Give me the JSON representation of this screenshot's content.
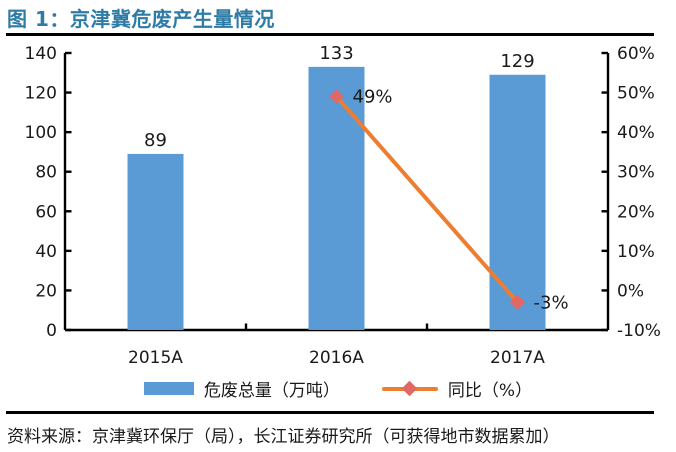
{
  "header": {
    "title": "图 1：京津冀危废产生量情况"
  },
  "footer": {
    "source": "资料来源：京津冀环保厅（局），长江证券研究所（可获得地市数据累加）"
  },
  "colors": {
    "title": "#2E7BA6",
    "bar": "#5B9BD5",
    "line": "#ED7D31",
    "marker": "#E16963",
    "axis": "#000000",
    "text": "#1A1A1A",
    "rule": "#000000"
  },
  "chart_data": {
    "type": "bar",
    "subtype": "bar-with-line-overlay",
    "title": "京津冀危废产生量情况",
    "categories": [
      "2015A",
      "2016A",
      "2017A"
    ],
    "series": [
      {
        "name": "危废总量（万吨）",
        "type": "bar",
        "axis": "left",
        "values": [
          89,
          133,
          129
        ],
        "labels": [
          "89",
          "133",
          "129"
        ],
        "color": "#5B9BD5"
      },
      {
        "name": "同比（%）",
        "type": "line",
        "axis": "right",
        "values": [
          null,
          49,
          -3
        ],
        "labels": [
          null,
          "49%",
          "-3%"
        ],
        "color": "#ED7D31",
        "marker": "diamond",
        "marker_color": "#E16963"
      }
    ],
    "left_axis": {
      "min": 0,
      "max": 140,
      "step": 20,
      "ticks": [
        "0",
        "20",
        "40",
        "60",
        "80",
        "100",
        "120",
        "140"
      ]
    },
    "right_axis": {
      "min": -10,
      "max": 60,
      "step": 10,
      "ticks": [
        "-10%",
        "0%",
        "10%",
        "20%",
        "30%",
        "40%",
        "50%",
        "60%"
      ]
    },
    "grid": false,
    "legend_position": "bottom",
    "legend": [
      {
        "label": "危废总量（万吨）",
        "swatch": "bar",
        "color": "#5B9BD5"
      },
      {
        "label": "同比（%）",
        "swatch": "line-diamond",
        "color": "#ED7D31",
        "marker_color": "#E16963"
      }
    ]
  }
}
